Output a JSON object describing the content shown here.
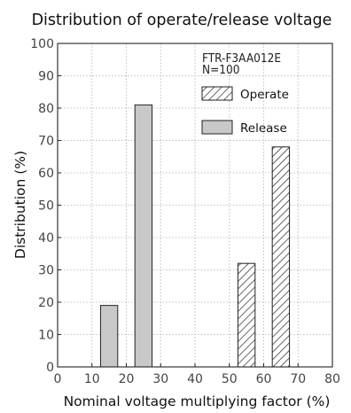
{
  "chart_data": {
    "type": "bar",
    "title": "Distribution of operate/release voltage",
    "xlabel": "Nominal voltage multiplying factor (%)",
    "ylabel": "Distribution (%)",
    "xlim": [
      0,
      80
    ],
    "ylim": [
      0,
      100
    ],
    "x_ticks": [
      0,
      10,
      20,
      30,
      40,
      50,
      60,
      70,
      80
    ],
    "y_ticks": [
      0,
      10,
      20,
      30,
      40,
      50,
      60,
      70,
      80,
      90,
      100
    ],
    "grid": true,
    "annotations": [
      "FTR-F3AA012E",
      "N=100"
    ],
    "legend_placement": "top-right",
    "series": [
      {
        "name": "Operate",
        "pattern": "hatched",
        "color": "#ffffff",
        "bars": [
          {
            "x_start": 52.5,
            "x_end": 57.5,
            "value": 32
          },
          {
            "x_start": 62.5,
            "x_end": 67.5,
            "value": 68
          }
        ]
      },
      {
        "name": "Release",
        "pattern": "solid",
        "color": "#c8c8c8",
        "bars": [
          {
            "x_start": 12.5,
            "x_end": 17.5,
            "value": 19
          },
          {
            "x_start": 22.5,
            "x_end": 27.5,
            "value": 81
          }
        ]
      }
    ]
  }
}
